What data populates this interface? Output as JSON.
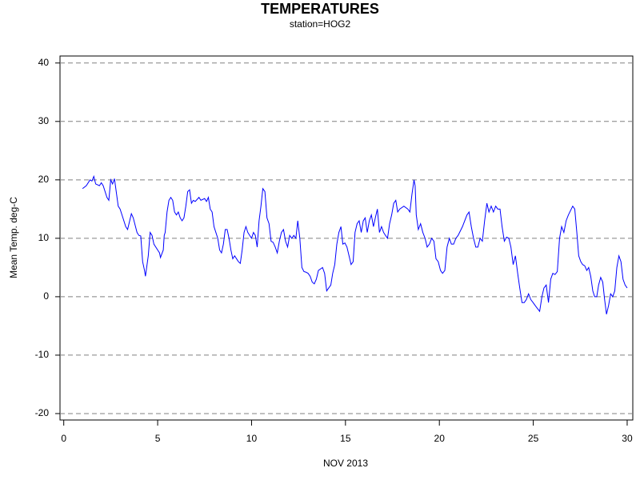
{
  "chart_data": {
    "type": "line",
    "title": "TEMPERATURES",
    "subtitle": "station=HOG2",
    "xlabel": "NOV 2013",
    "ylabel": "Mean Temp. deg-C",
    "color": "#0000ff",
    "grid": true,
    "xlim": [
      -0.2,
      30.3
    ],
    "xticks": [
      0,
      5,
      10,
      15,
      20,
      25,
      30
    ],
    "ylim": [
      -21.1,
      41.2
    ],
    "yticks": [
      -20,
      -10,
      0,
      10,
      20,
      30,
      40
    ],
    "x": [
      1.0,
      1.2,
      1.4,
      1.5,
      1.6,
      1.7,
      1.9,
      2.0,
      2.1,
      2.3,
      2.4,
      2.5,
      2.6,
      2.7,
      2.9,
      3.0,
      3.1,
      3.3,
      3.4,
      3.6,
      3.7,
      3.9,
      4.0,
      4.1,
      4.2,
      4.3,
      4.35,
      4.5,
      4.6,
      4.7,
      4.8,
      5.0,
      5.1,
      5.15,
      5.3,
      5.35,
      5.4,
      5.5,
      5.6,
      5.7,
      5.8,
      5.9,
      6.0,
      6.1,
      6.2,
      6.3,
      6.4,
      6.5,
      6.6,
      6.7,
      6.8,
      6.9,
      7.0,
      7.2,
      7.3,
      7.5,
      7.6,
      7.7,
      7.8,
      7.9,
      8.0,
      8.1,
      8.2,
      8.3,
      8.4,
      8.5,
      8.6,
      8.7,
      8.8,
      8.9,
      9.0,
      9.1,
      9.2,
      9.3,
      9.4,
      9.5,
      9.6,
      9.7,
      9.8,
      9.9,
      10.0,
      10.1,
      10.2,
      10.3,
      10.4,
      10.5,
      10.6,
      10.71,
      10.82,
      10.93,
      11.04,
      11.15,
      11.26,
      11.37,
      11.48,
      11.59,
      11.7,
      11.81,
      11.92,
      12.03,
      12.14,
      12.25,
      12.36,
      12.46,
      12.57,
      12.68,
      12.79,
      12.9,
      13.01,
      13.12,
      13.23,
      13.34,
      13.45,
      13.56,
      13.78,
      13.89,
      14.0,
      14.11,
      14.22,
      14.32,
      14.43,
      14.54,
      14.65,
      14.76,
      14.86,
      14.97,
      15.08,
      15.19,
      15.3,
      15.41,
      15.51,
      15.62,
      15.73,
      15.84,
      15.95,
      16.05,
      16.16,
      16.27,
      16.38,
      16.49,
      16.59,
      16.7,
      16.81,
      16.92,
      17.03,
      17.13,
      17.24,
      17.35,
      17.46,
      17.57,
      17.68,
      17.78,
      17.89,
      18.11,
      18.32,
      18.43,
      18.54,
      18.65,
      18.71,
      18.77,
      18.88,
      19.0,
      19.12,
      19.24,
      19.35,
      19.47,
      19.59,
      19.71,
      19.82,
      19.94,
      20.06,
      20.17,
      20.29,
      20.41,
      20.53,
      20.64,
      20.76,
      20.88,
      21.0,
      21.23,
      21.47,
      21.58,
      21.7,
      21.82,
      21.94,
      22.05,
      22.17,
      22.29,
      22.41,
      22.53,
      22.64,
      22.76,
      22.88,
      23.0,
      23.11,
      23.23,
      23.34,
      23.46,
      23.58,
      23.7,
      23.81,
      23.93,
      24.05,
      24.17,
      24.28,
      24.4,
      24.52,
      24.63,
      24.75,
      24.87,
      24.99,
      25.1,
      25.22,
      25.34,
      25.46,
      25.57,
      25.69,
      25.81,
      25.93,
      26.04,
      26.16,
      26.28,
      26.4,
      26.51,
      26.63,
      26.75,
      26.87,
      27.1,
      27.21,
      27.32,
      27.42,
      27.53,
      27.63,
      27.74,
      27.85,
      27.95,
      28.06,
      28.17,
      28.27,
      28.38,
      28.48,
      28.59,
      28.7,
      28.8,
      28.9,
      29.01,
      29.12,
      29.23,
      29.34,
      29.45,
      29.56,
      29.67,
      29.78,
      29.89,
      30.0
    ],
    "values": [
      18.5,
      19,
      20,
      19.8,
      20.6,
      19.3,
      19,
      19.5,
      19,
      17,
      16.5,
      20,
      19.3,
      20.2,
      15.5,
      15,
      14,
      12,
      11.5,
      14.2,
      13.5,
      11,
      10.5,
      10.4,
      6,
      4.5,
      3.5,
      7,
      11,
      10.5,
      9,
      8,
      7.5,
      6.7,
      8,
      10.5,
      11,
      14.5,
      16.5,
      17,
      16.5,
      14.5,
      14,
      14.5,
      13.5,
      13,
      13.5,
      15.5,
      18,
      18.3,
      16,
      16.5,
      16.3,
      17,
      16.5,
      16.8,
      16.3,
      17,
      15,
      14.5,
      12,
      11,
      10,
      8,
      7.5,
      9,
      11.5,
      11.5,
      10,
      8,
      6.5,
      7,
      6.5,
      6,
      5.7,
      8,
      11,
      12,
      11,
      10.5,
      10,
      11,
      10.5,
      8.5,
      13,
      15.5,
      18.5,
      18,
      13.5,
      12.5,
      9.5,
      9.3,
      8.5,
      7.5,
      9.5,
      11,
      11.5,
      9.5,
      8.5,
      10.5,
      10,
      10.5,
      10,
      13,
      10,
      5,
      4.3,
      4.2,
      4,
      3.5,
      2.5,
      2.2,
      3,
      4.5,
      5,
      4,
      1,
      1.5,
      2,
      4,
      5.5,
      9,
      11,
      12,
      9,
      9.2,
      8.5,
      7,
      5.5,
      6,
      11,
      12.5,
      13,
      11,
      13,
      13.5,
      11,
      13,
      14,
      12,
      13.5,
      15,
      11,
      12,
      11,
      10.5,
      10,
      12.5,
      14,
      16,
      16.5,
      14.5,
      15,
      15.5,
      15,
      14.5,
      17.5,
      20,
      19,
      14,
      11.5,
      12.5,
      11,
      10,
      8.5,
      9,
      10,
      9.5,
      6.5,
      6,
      4.5,
      4,
      4.5,
      8.5,
      10,
      9,
      9,
      10,
      10.5,
      12,
      14,
      14.5,
      12,
      10,
      8.5,
      8.5,
      10,
      9.5,
      13,
      16,
      14.5,
      15.5,
      14.5,
      15.5,
      15,
      15,
      12,
      9.5,
      10.2,
      10,
      8.5,
      5.5,
      7,
      4,
      1.5,
      -1,
      -1,
      -0.5,
      0.5,
      -0.5,
      -1,
      -1.5,
      -2,
      -2.5,
      0,
      1.5,
      2,
      -1,
      3,
      4,
      3.8,
      4.3,
      10,
      12,
      11,
      13,
      14,
      15.5,
      15,
      11,
      7,
      6,
      5.5,
      5.3,
      4.5,
      5,
      3.5,
      1,
      0,
      0,
      2,
      3.3,
      2.5,
      -0.5,
      -3,
      -1.5,
      0.5,
      0,
      1,
      5,
      7,
      6,
      3,
      2,
      1.5
    ]
  }
}
